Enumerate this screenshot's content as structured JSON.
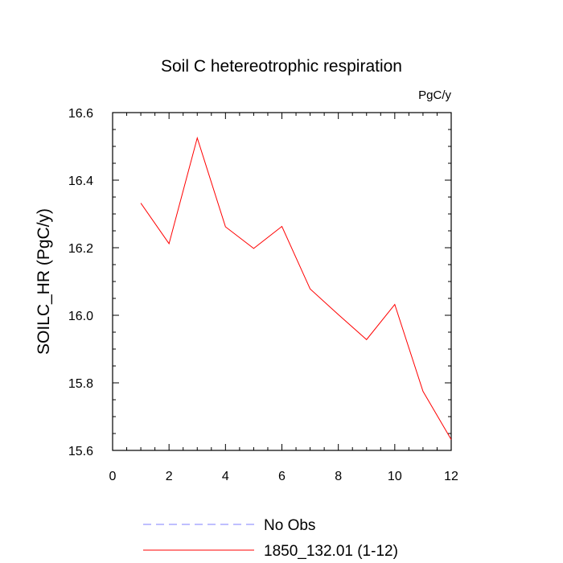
{
  "chart_data": {
    "type": "line",
    "title": "Soil C hetereotrophic respiration",
    "units_label": "PgC/y",
    "xlabel": "",
    "ylabel": "SOILC_HR  (PgC/y)",
    "xlim": [
      0,
      12
    ],
    "ylim": [
      15.6,
      16.6
    ],
    "x_ticks": [
      0,
      2,
      4,
      6,
      8,
      10,
      12
    ],
    "y_ticks": [
      15.6,
      15.8,
      16.0,
      16.2,
      16.4,
      16.6
    ],
    "x_tick_labels": [
      "0",
      "2",
      "4",
      "6",
      "8",
      "10",
      "12"
    ],
    "y_tick_labels": [
      "15.6",
      "15.8",
      "16.0",
      "16.2",
      "16.4",
      "16.6"
    ],
    "grid": false,
    "legend_position": "bottom",
    "series": [
      {
        "name": "1850_132.01 (1-12)",
        "color": "#ff0000",
        "dash": "solid",
        "x": [
          1,
          2,
          3,
          4,
          5,
          6,
          7,
          8,
          9,
          10,
          11,
          12
        ],
        "values": [
          16.332,
          16.212,
          16.525,
          16.262,
          16.198,
          16.263,
          16.078,
          16.002,
          15.928,
          16.032,
          15.775,
          15.632
        ]
      }
    ],
    "legend": [
      {
        "label": "No Obs",
        "color": "#7f7fff",
        "dash": "dashed"
      },
      {
        "label": "1850_132.01 (1-12)",
        "color": "#ff0000",
        "dash": "solid"
      }
    ]
  }
}
